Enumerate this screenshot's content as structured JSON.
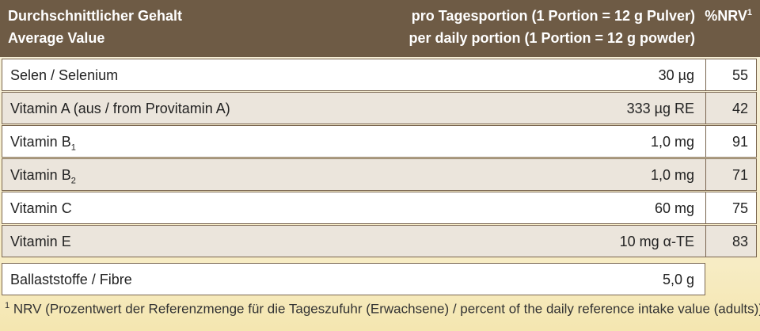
{
  "header": {
    "title_de": "Durchschnittlicher Gehalt",
    "title_en": "Average Value",
    "portion_de": "pro Tagesportion (1 Portion = 12 g Pulver)",
    "portion_en": "per daily portion (1 Portion = 12 g powder)",
    "nrv": {
      "text": "%NRV",
      "sup": "1"
    }
  },
  "table": {
    "rows": [
      [
        {
          "text": "Selen / Selenium"
        },
        "30 µg",
        "55"
      ],
      [
        {
          "text": "Vitamin A (aus / from Provitamin A)"
        },
        "333 µg RE",
        "42"
      ],
      [
        {
          "text": "Vitamin B",
          "sub": "1"
        },
        "1,0 mg",
        "91"
      ],
      [
        {
          "text": "Vitamin B",
          "sub": "2"
        },
        "1,0 mg",
        "71"
      ],
      [
        {
          "text": "Vitamin C"
        },
        "60 mg",
        "75"
      ],
      [
        {
          "text": "Vitamin E"
        },
        "10 mg α-TE",
        "83"
      ]
    ],
    "fibre": [
      {
        "text": "Ballaststoffe / Fibre"
      },
      "5,0 g"
    ]
  },
  "footnote": {
    "marker": "1",
    "text": "NRV (Prozentwert der Referenzmenge für die Tageszufuhr (Erwachsene) / percent of the daily reference intake value (adults))"
  }
}
